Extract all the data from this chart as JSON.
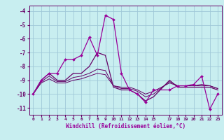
{
  "xlabel": "Windchill (Refroidissement éolien,°C)",
  "background_color": "#c8eef0",
  "grid_color": "#a0c8d8",
  "line_color": "#990099",
  "line_color2": "#660066",
  "xlim": [
    -0.5,
    23.5
  ],
  "ylim": [
    -11.5,
    -3.6
  ],
  "yticks": [
    -11,
    -10,
    -9,
    -8,
    -7,
    -6,
    -5,
    -4
  ],
  "xticks": [
    0,
    1,
    2,
    3,
    4,
    5,
    6,
    7,
    8,
    9,
    10,
    11,
    12,
    13,
    14,
    15,
    17,
    18,
    19,
    20,
    21,
    22,
    23
  ],
  "series1_x": [
    0,
    1,
    2,
    3,
    4,
    5,
    6,
    7,
    8,
    9,
    10,
    11,
    12,
    13,
    14,
    15,
    17,
    18,
    19,
    20,
    21,
    22,
    23
  ],
  "series1_y": [
    -10.0,
    -9.0,
    -8.5,
    -8.5,
    -7.5,
    -7.5,
    -7.2,
    -5.9,
    -7.2,
    -4.3,
    -4.6,
    -8.5,
    -9.7,
    -10.0,
    -10.6,
    -9.7,
    -9.7,
    -9.4,
    -9.4,
    -9.3,
    -8.7,
    -11.1,
    -10.0
  ],
  "series2_x": [
    0,
    1,
    2,
    3,
    4,
    5,
    6,
    7,
    8,
    9,
    10,
    11,
    12,
    13,
    14,
    15,
    17,
    18,
    19,
    20,
    21,
    22,
    23
  ],
  "series2_y": [
    -10.0,
    -9.0,
    -8.5,
    -9.0,
    -9.0,
    -8.5,
    -8.5,
    -8.0,
    -7.0,
    -7.2,
    -9.5,
    -9.7,
    -9.7,
    -10.0,
    -10.5,
    -10.2,
    -9.0,
    -9.5,
    -9.5,
    -9.5,
    -9.5,
    -9.5,
    -9.7
  ],
  "series3_x": [
    0,
    1,
    2,
    3,
    4,
    5,
    6,
    7,
    8,
    9,
    10,
    11,
    12,
    13,
    14,
    15,
    17,
    18,
    19,
    20,
    21,
    22,
    23
  ],
  "series3_y": [
    -10.0,
    -9.1,
    -8.7,
    -9.1,
    -9.1,
    -8.8,
    -8.7,
    -8.5,
    -8.2,
    -8.3,
    -9.4,
    -9.6,
    -9.6,
    -9.8,
    -10.2,
    -10.0,
    -9.1,
    -9.4,
    -9.4,
    -9.4,
    -9.4,
    -9.4,
    -9.6
  ],
  "series4_x": [
    0,
    1,
    2,
    3,
    4,
    5,
    6,
    7,
    8,
    9,
    10,
    11,
    12,
    13,
    14,
    15,
    17,
    18,
    19,
    20,
    21,
    22,
    23
  ],
  "series4_y": [
    -10.0,
    -9.2,
    -8.9,
    -9.2,
    -9.2,
    -9.0,
    -8.9,
    -8.7,
    -8.5,
    -8.6,
    -9.4,
    -9.5,
    -9.5,
    -9.7,
    -10.0,
    -9.8,
    -9.2,
    -9.4,
    -9.4,
    -9.4,
    -9.3,
    -9.4,
    -9.6
  ]
}
